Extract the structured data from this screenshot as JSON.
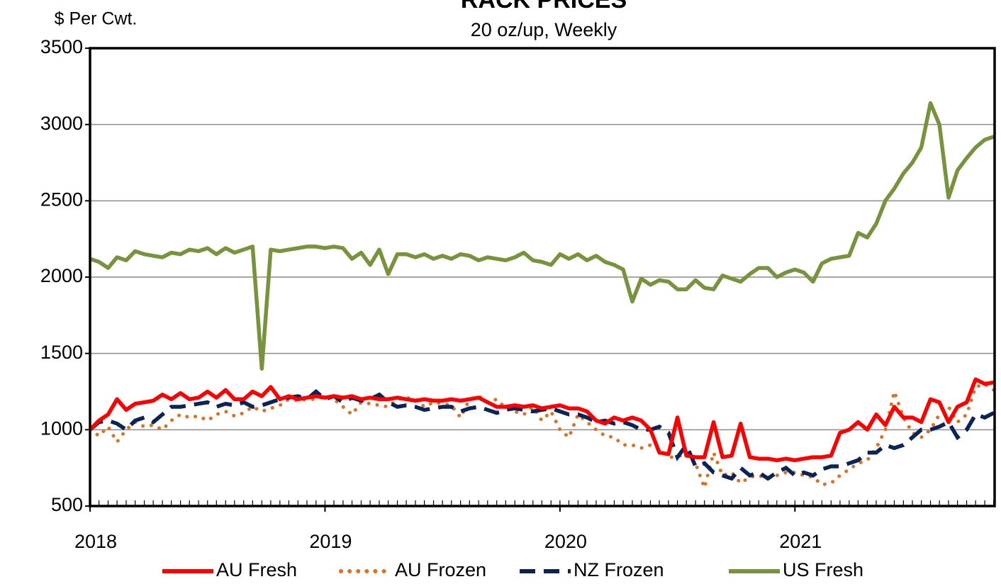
{
  "chart_data": {
    "type": "line",
    "title": "RACK PRICES",
    "subtitle": "20 oz/up, Weekly",
    "y_label": "$ Per Cwt.",
    "x": [
      2018,
      2018.038,
      2018.077,
      2018.115,
      2018.154,
      2018.192,
      2018.231,
      2018.269,
      2018.308,
      2018.346,
      2018.385,
      2018.423,
      2018.462,
      2018.5,
      2018.538,
      2018.577,
      2018.615,
      2018.654,
      2018.692,
      2018.731,
      2018.769,
      2018.808,
      2018.846,
      2018.885,
      2018.923,
      2018.962,
      2019,
      2019.038,
      2019.077,
      2019.115,
      2019.154,
      2019.192,
      2019.231,
      2019.269,
      2019.308,
      2019.346,
      2019.385,
      2019.423,
      2019.462,
      2019.5,
      2019.538,
      2019.577,
      2019.615,
      2019.654,
      2019.692,
      2019.731,
      2019.769,
      2019.808,
      2019.846,
      2019.885,
      2019.923,
      2019.962,
      2020,
      2020.038,
      2020.077,
      2020.115,
      2020.154,
      2020.192,
      2020.231,
      2020.269,
      2020.308,
      2020.346,
      2020.385,
      2020.423,
      2020.462,
      2020.5,
      2020.538,
      2020.577,
      2020.615,
      2020.654,
      2020.692,
      2020.731,
      2020.769,
      2020.808,
      2020.846,
      2020.885,
      2020.923,
      2020.962,
      2021,
      2021.038,
      2021.077,
      2021.115,
      2021.154,
      2021.192,
      2021.231,
      2021.269,
      2021.308,
      2021.346,
      2021.385,
      2021.423,
      2021.462,
      2021.5,
      2021.538,
      2021.577,
      2021.615,
      2021.654,
      2021.692,
      2021.731,
      2021.769,
      2021.808,
      2021.846
    ],
    "series": [
      {
        "name": "AU Fresh",
        "color": "#ff0000",
        "style": "solid",
        "values": [
          1000,
          1060,
          1100,
          1200,
          1130,
          1170,
          1180,
          1190,
          1230,
          1200,
          1240,
          1200,
          1210,
          1250,
          1210,
          1260,
          1200,
          1200,
          1250,
          1220,
          1280,
          1200,
          1220,
          1200,
          1210,
          1220,
          1210,
          1220,
          1210,
          1220,
          1200,
          1210,
          1200,
          1200,
          1210,
          1200,
          1190,
          1200,
          1190,
          1190,
          1200,
          1190,
          1200,
          1210,
          1180,
          1150,
          1150,
          1160,
          1150,
          1160,
          1140,
          1150,
          1160,
          1140,
          1140,
          1120,
          1060,
          1040,
          1080,
          1060,
          1080,
          1060,
          1000,
          850,
          840,
          1080,
          830,
          820,
          820,
          1050,
          820,
          830,
          1040,
          820,
          810,
          810,
          800,
          810,
          800,
          810,
          820,
          820,
          830,
          980,
          1000,
          1050,
          1000,
          1100,
          1030,
          1150,
          1080,
          1080,
          1050,
          1200,
          1180,
          1050,
          1150,
          1180,
          1330,
          1300,
          1310
        ]
      },
      {
        "name": "AU Frozen",
        "color": "#e07020",
        "style": "dotted",
        "values": [
          1000,
          960,
          1020,
          920,
          1000,
          1050,
          1020,
          1030,
          1000,
          1060,
          1100,
          1080,
          1090,
          1060,
          1100,
          1120,
          1090,
          1110,
          1150,
          1120,
          1140,
          1160,
          1200,
          1190,
          1200,
          1200,
          1220,
          1200,
          1150,
          1100,
          1180,
          1170,
          1160,
          1150,
          1200,
          1210,
          1200,
          1150,
          1180,
          1170,
          1160,
          1080,
          1200,
          1220,
          1180,
          1200,
          1140,
          1120,
          1100,
          1150,
          1060,
          1120,
          1000,
          950,
          1100,
          1050,
          1000,
          960,
          950,
          900,
          900,
          880,
          900,
          870,
          820,
          820,
          850,
          780,
          620,
          850,
          700,
          720,
          650,
          690,
          700,
          680,
          700,
          720,
          720,
          700,
          690,
          640,
          650,
          700,
          740,
          780,
          800,
          880,
          1000,
          1250,
          1080,
          980,
          950,
          1000,
          1100,
          1150,
          1050,
          1100,
          1280,
          1300,
          1260
        ]
      },
      {
        "name": "NZ Frozen",
        "color": "#0a2458",
        "style": "dashed",
        "values": [
          1000,
          1050,
          1060,
          1040,
          1000,
          1060,
          1080,
          1050,
          1100,
          1150,
          1150,
          1160,
          1170,
          1180,
          1150,
          1170,
          1160,
          1180,
          1150,
          1160,
          1180,
          1200,
          1210,
          1220,
          1200,
          1250,
          1200,
          1220,
          1180,
          1210,
          1190,
          1200,
          1230,
          1180,
          1150,
          1160,
          1150,
          1130,
          1140,
          1150,
          1150,
          1120,
          1140,
          1150,
          1130,
          1110,
          1130,
          1140,
          1130,
          1120,
          1130,
          1140,
          1120,
          1100,
          1100,
          1080,
          1050,
          1060,
          1040,
          1050,
          1030,
          1000,
          1000,
          1020,
          980,
          820,
          900,
          760,
          780,
          720,
          700,
          680,
          750,
          700,
          720,
          680,
          720,
          750,
          700,
          720,
          700,
          740,
          760,
          760,
          780,
          800,
          850,
          850,
          900,
          880,
          900,
          950,
          1000,
          1000,
          1020,
          1050,
          950,
          1000,
          1100,
          1080,
          1110
        ]
      },
      {
        "name": "US Fresh",
        "color": "#77933c",
        "style": "solid",
        "values": [
          2120,
          2100,
          2060,
          2130,
          2110,
          2170,
          2150,
          2140,
          2130,
          2160,
          2150,
          2180,
          2170,
          2190,
          2150,
          2190,
          2160,
          2180,
          2200,
          1400,
          2180,
          2170,
          2180,
          2190,
          2200,
          2200,
          2190,
          2200,
          2190,
          2120,
          2160,
          2080,
          2180,
          2020,
          2150,
          2150,
          2130,
          2150,
          2120,
          2140,
          2120,
          2150,
          2140,
          2110,
          2130,
          2120,
          2110,
          2130,
          2160,
          2110,
          2100,
          2080,
          2150,
          2120,
          2150,
          2110,
          2140,
          2100,
          2080,
          2050,
          1840,
          1990,
          1950,
          1980,
          1970,
          1920,
          1920,
          1980,
          1930,
          1920,
          2010,
          1990,
          1970,
          2020,
          2060,
          2060,
          2000,
          2030,
          2050,
          2030,
          1970,
          2090,
          2120,
          2130,
          2140,
          2290,
          2260,
          2350,
          2500,
          2580,
          2680,
          2750,
          2850,
          3140,
          3000,
          2520,
          2700,
          2780,
          2850,
          2900,
          2920
        ]
      }
    ],
    "xlim": [
      2018,
      2021.85
    ],
    "xticks": [
      2018,
      2019,
      2020,
      2021
    ],
    "ylim": [
      500,
      3500
    ],
    "yticks": [
      500,
      1000,
      1500,
      2000,
      2500,
      3000,
      3500
    ],
    "grid": true,
    "legend": "bottom"
  }
}
